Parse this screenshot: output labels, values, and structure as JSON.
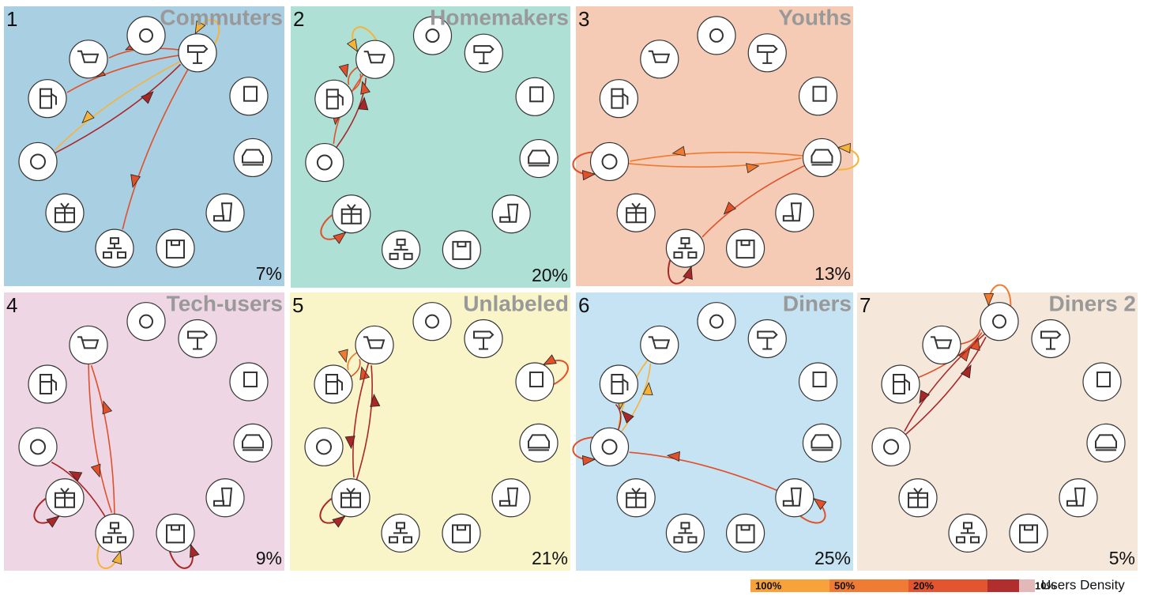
{
  "panels": [
    {
      "number": "1",
      "label": "Commuters",
      "share": "7%"
    },
    {
      "number": "2",
      "label": "Homemakers",
      "share": "20%"
    },
    {
      "number": "3",
      "label": "Youths",
      "share": "13%"
    },
    {
      "number": "4",
      "label": "Tech-users",
      "share": "9%"
    },
    {
      "number": "5",
      "label": "Unlabeled",
      "share": "21%"
    },
    {
      "number": "6",
      "label": "Diners",
      "share": "25%"
    },
    {
      "number": "7",
      "label": "Diners 2",
      "share": "5%"
    }
  ],
  "legend": {
    "items": [
      "100%",
      "50%",
      "20%",
      "10%"
    ],
    "title": "Users Density"
  }
}
